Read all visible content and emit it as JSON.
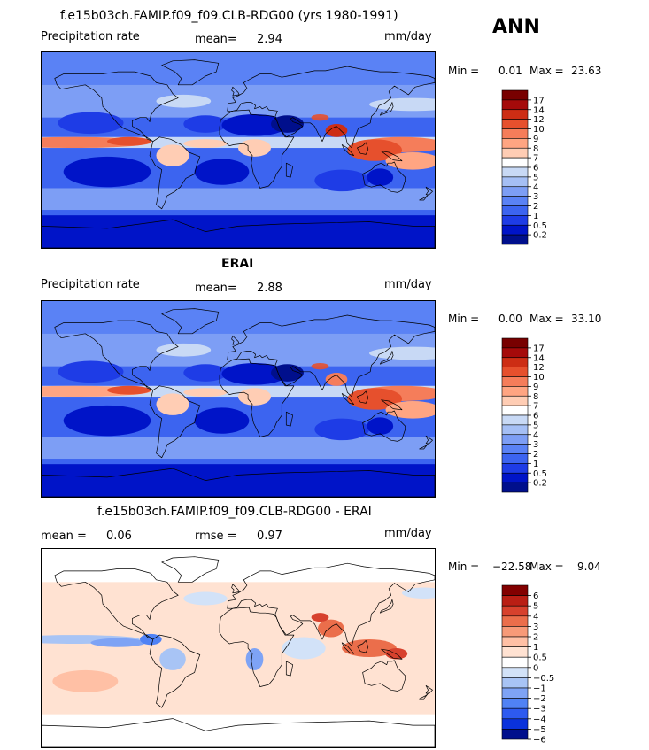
{
  "season": "ANN",
  "colors": {
    "precip": [
      "#000f8c",
      "#0014c8",
      "#1e3ce6",
      "#3c64f0",
      "#5a82f5",
      "#7d9ef5",
      "#a5bff5",
      "#c8d9f5",
      "#ffffff",
      "#ffcdb4",
      "#ffa582",
      "#f57d5a",
      "#e6502d",
      "#cd2d14",
      "#a50a0a",
      "#780000"
    ],
    "diff": [
      "#000f8c",
      "#0a32dc",
      "#2d5af0",
      "#5082f5",
      "#7ea3f5",
      "#a8c4f5",
      "#d2e2f8",
      "#ffffff",
      "#ffe2d2",
      "#ffc0a5",
      "#f79a78",
      "#eb6e4b",
      "#d7412d",
      "#b91e14",
      "#820000"
    ]
  },
  "panels": [
    {
      "id": "model",
      "title": "f.e15b03ch.FAMIP.f09_f09.CLB-RDG00 (yrs 1980-1991)",
      "left_label": "Precipitation rate",
      "stat_label": "mean=",
      "stat_value": "2.94",
      "units": "mm/day",
      "min_label": "Min =",
      "min_value": "0.01",
      "max_label": "Max =",
      "max_value": "23.63"
    },
    {
      "id": "obs",
      "title": "ERAI",
      "left_label": "Precipitation rate",
      "stat_label": "mean=",
      "stat_value": "2.88",
      "units": "mm/day",
      "min_label": "Min =",
      "min_value": "0.00",
      "max_label": "Max =",
      "max_value": "33.10"
    },
    {
      "id": "diff",
      "title": "f.e15b03ch.FAMIP.f09_f09.CLB-RDG00 - ERAI",
      "left_label": "mean =",
      "left_value": "0.06",
      "stat_label": "rmse =",
      "stat_value": "0.97",
      "units": "mm/day",
      "min_label": "Min =",
      "min_value": "−22.58",
      "max_label": "Max =",
      "max_value": "9.04"
    }
  ],
  "chart_data": [
    {
      "type": "heatmap",
      "title": "f.e15b03ch.FAMIP.f09_f09.CLB-RDG00 (yrs 1980-1991)",
      "variable": "Precipitation rate",
      "units": "mm/day",
      "mean": 2.94,
      "min": 0.01,
      "max": 23.63,
      "colorbar_levels": [
        "17",
        "14",
        "12",
        "10",
        "9",
        "8",
        "7",
        "6",
        "5",
        "4",
        "3",
        "2",
        "1",
        "0.5",
        "0.2"
      ]
    },
    {
      "type": "heatmap",
      "title": "ERAI",
      "variable": "Precipitation rate",
      "units": "mm/day",
      "mean": 2.88,
      "min": 0.0,
      "max": 33.1,
      "colorbar_levels": [
        "17",
        "14",
        "12",
        "10",
        "9",
        "8",
        "7",
        "6",
        "5",
        "4",
        "3",
        "2",
        "1",
        "0.5",
        "0.2"
      ]
    },
    {
      "type": "heatmap",
      "title": "f.e15b03ch.FAMIP.f09_f09.CLB-RDG00 - ERAI",
      "units": "mm/day",
      "mean": 0.06,
      "rmse": 0.97,
      "min": -22.58,
      "max": 9.04,
      "colorbar_levels": [
        "6",
        "5",
        "4",
        "3",
        "2",
        "1",
        "0.5",
        "0",
        "−0.5",
        "−1",
        "−2",
        "−3",
        "−4",
        "−5",
        "−6"
      ]
    }
  ]
}
